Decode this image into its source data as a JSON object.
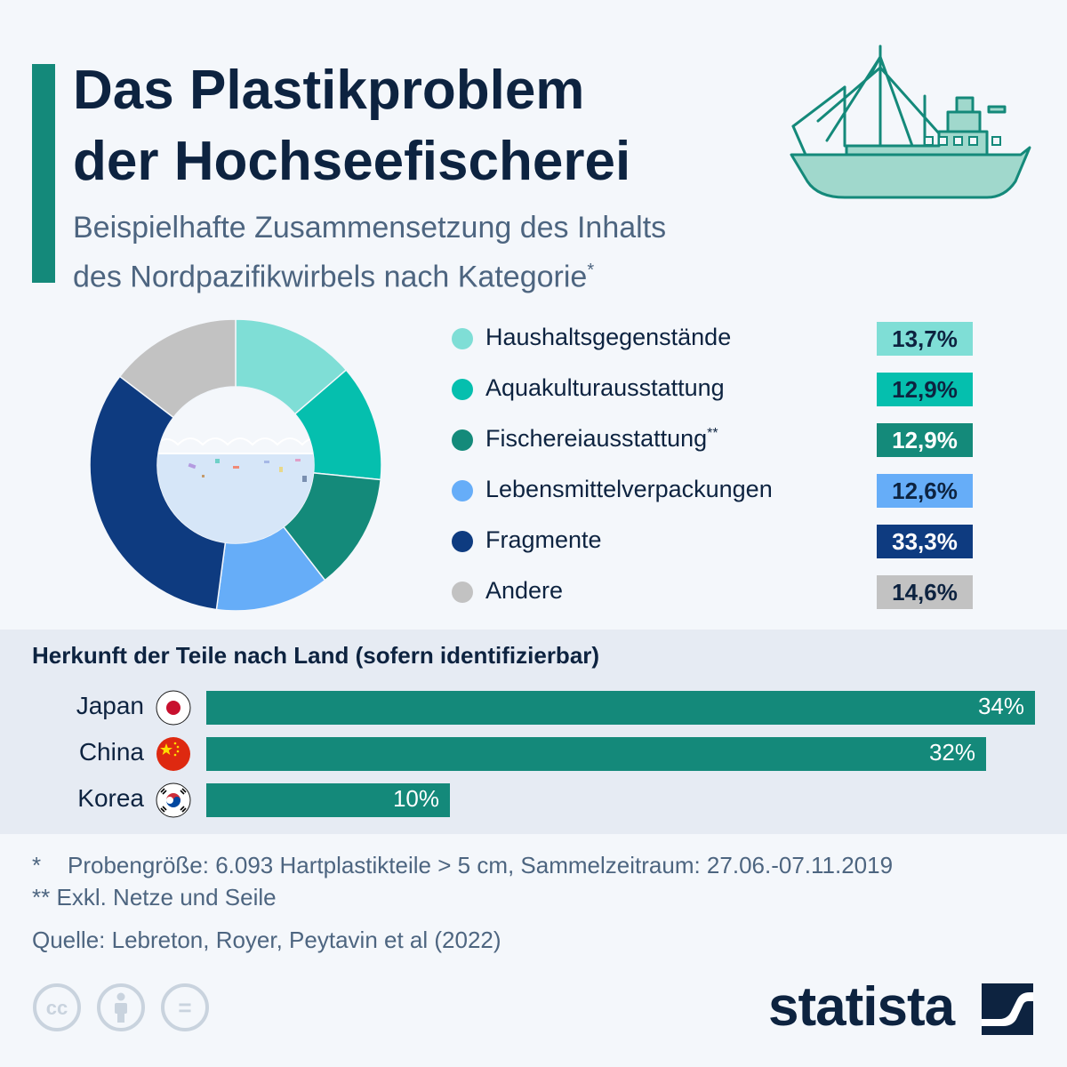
{
  "header": {
    "title_line1": "Das Plastikproblem",
    "title_line2": "der Hochseefischerei",
    "subtitle_line1": "Beispielhafte Zusammensetzung des Inhalts",
    "subtitle_line2": "des Nordpazifikwirbels nach Kategorie",
    "subtitle_mark": "*"
  },
  "colors": {
    "accent": "#14897a",
    "title": "#0d2340",
    "subtitle": "#4d6580",
    "donut_center": "#d6e6f8",
    "section_bg": "#e6ebf3"
  },
  "chart_data": [
    {
      "type": "pie",
      "style": "donut",
      "categories": [
        "Haushaltsgegenstände",
        "Aquakulturausstattung",
        "Fischereiausstattung",
        "Lebensmittelverpackungen",
        "Fragmente",
        "Andere"
      ],
      "values": [
        13.7,
        12.9,
        12.9,
        12.6,
        33.3,
        14.6
      ],
      "value_labels": [
        "13,7%",
        "12,9%",
        "12,9%",
        "12,6%",
        "33,3%",
        "14,6%"
      ],
      "label_marks": [
        "",
        "",
        "**",
        "",
        "",
        ""
      ],
      "colors": [
        "#7fded6",
        "#05bfae",
        "#148a7a",
        "#66adf8",
        "#0e3b80",
        "#c2c2c2"
      ],
      "value_text_colors": [
        "#0d2340",
        "#0d2340",
        "#ffffff",
        "#0d2340",
        "#ffffff",
        "#0d2340"
      ],
      "unit": "%"
    },
    {
      "type": "bar",
      "orientation": "horizontal",
      "title": "Herkunft der Teile nach Land (sofern identifizierbar)",
      "categories": [
        "Japan",
        "China",
        "Korea"
      ],
      "values": [
        34,
        32,
        10
      ],
      "value_labels": [
        "34%",
        "32%",
        "10%"
      ],
      "flags": [
        "japan-flag-icon",
        "china-flag-icon",
        "korea-flag-icon"
      ],
      "xlim": [
        0,
        34
      ],
      "color": "#14897a",
      "unit": "%"
    }
  ],
  "footnotes": {
    "note1_mark": "*",
    "note1_text": "Probengröße: 6.093 Hartplastikteile > 5 cm, Sammelzeitraum: 27.06.-07.11.2019",
    "note2_mark": "**",
    "note2_text": "Exkl. Netze und Seile",
    "source": "Quelle: Lebreton, Royer, Peytavin et al (2022)"
  },
  "footer": {
    "license_icons": [
      "cc-icon",
      "attribution-icon",
      "no-derivatives-icon"
    ],
    "cc_text": "cc",
    "equals_text": "=",
    "brand": "statista"
  }
}
